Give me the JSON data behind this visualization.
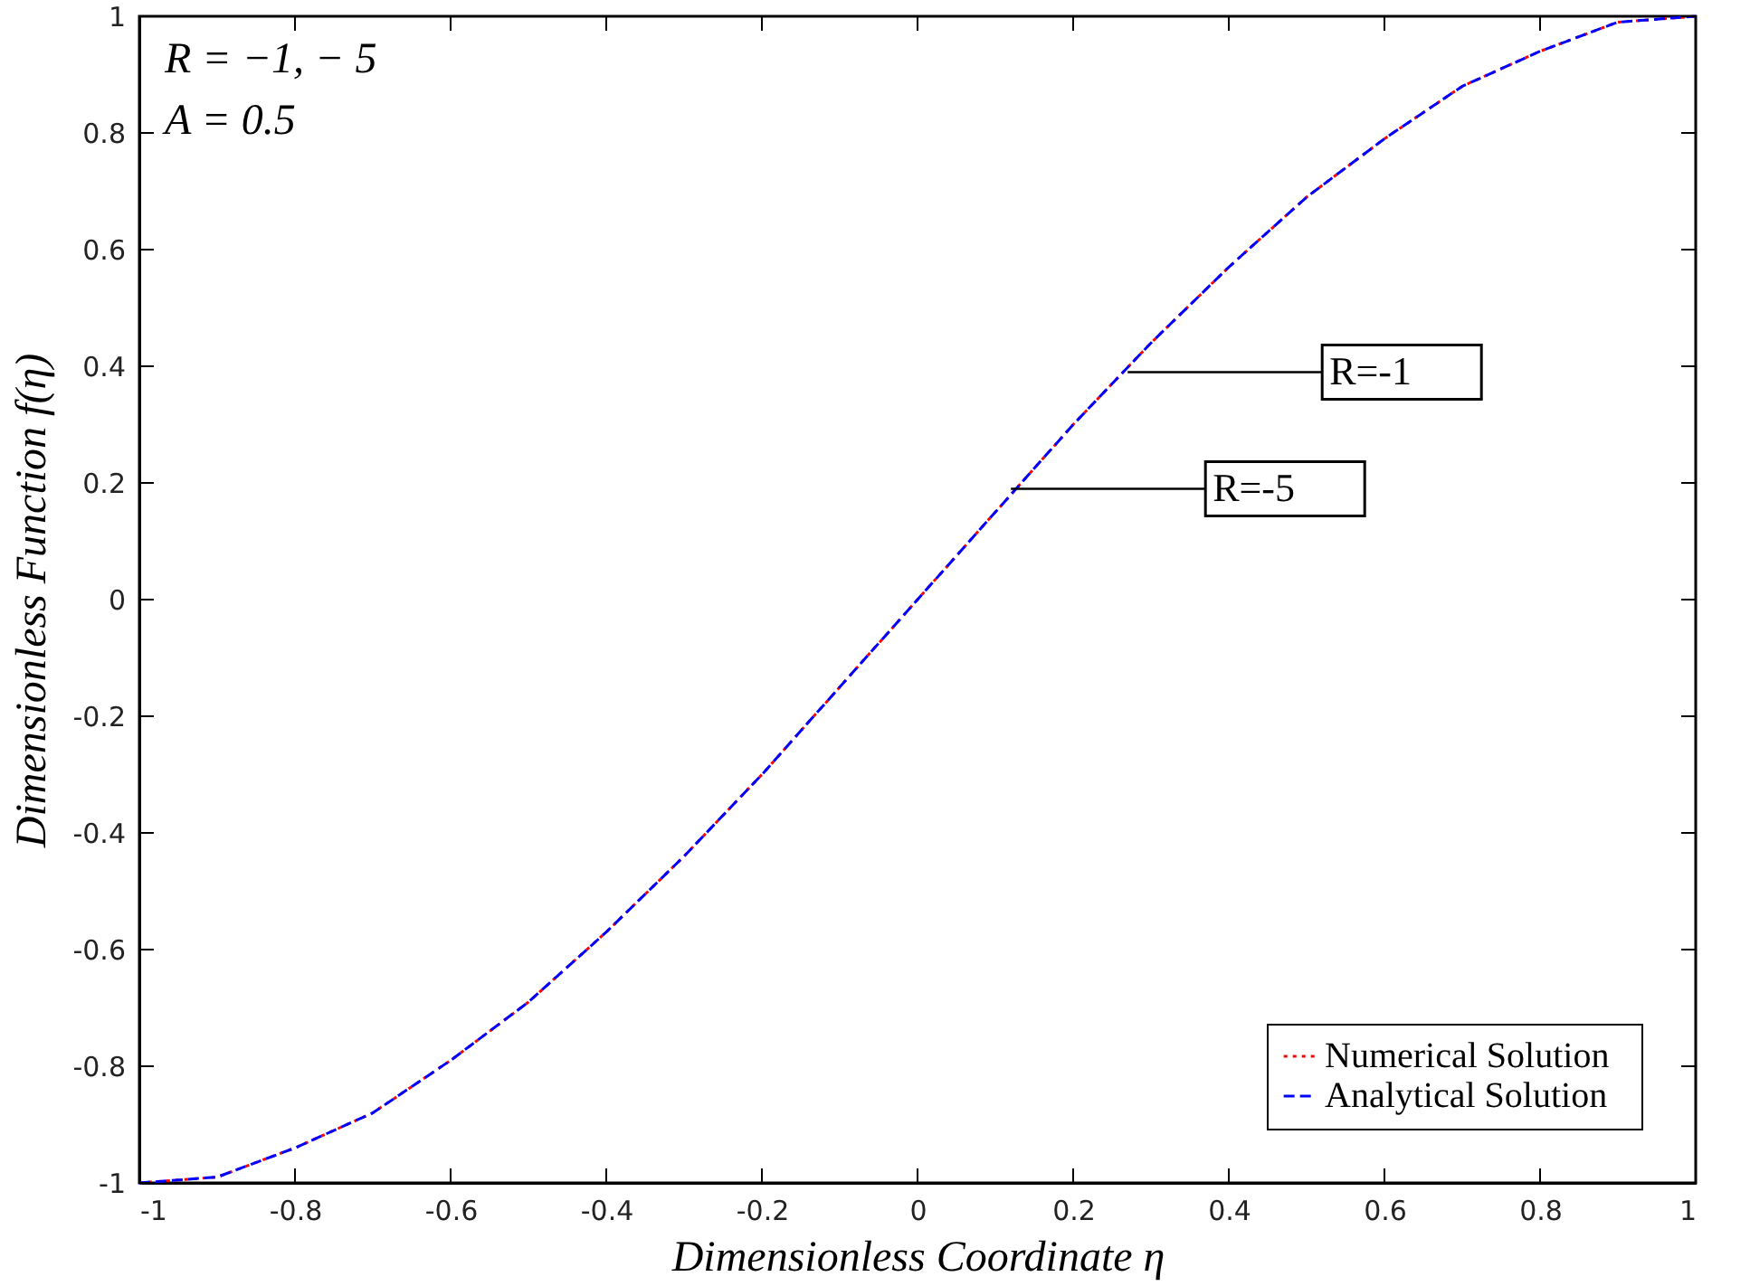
{
  "chart_data": {
    "type": "line",
    "xlabel": "Dimensionless  Coordinate  η",
    "ylabel": "Dimensionless  Function  f(η)",
    "x": [
      -1,
      -0.9,
      -0.8,
      -0.7,
      -0.6,
      -0.5,
      -0.4,
      -0.3,
      -0.2,
      -0.1,
      0,
      0.1,
      0.2,
      0.3,
      0.4,
      0.5,
      0.6,
      0.7,
      0.8,
      0.9,
      1
    ],
    "series": [
      {
        "name": "Numerical  Solution",
        "color": "#ff0000",
        "line_style": "dotted",
        "values": [
          -1,
          -0.99,
          -0.94,
          -0.88,
          -0.79,
          -0.69,
          -0.57,
          -0.44,
          -0.3,
          -0.15,
          0,
          0.15,
          0.3,
          0.44,
          0.57,
          0.69,
          0.79,
          0.88,
          0.94,
          0.99,
          1
        ]
      },
      {
        "name": "Analytical   Solution",
        "color": "#0000ff",
        "line_style": "dashed",
        "values": [
          -1,
          -0.99,
          -0.94,
          -0.88,
          -0.79,
          -0.69,
          -0.57,
          -0.44,
          -0.3,
          -0.15,
          0,
          0.15,
          0.3,
          0.44,
          0.57,
          0.69,
          0.79,
          0.88,
          0.94,
          0.99,
          1
        ]
      }
    ],
    "xlim": [
      -1,
      1
    ],
    "ylim": [
      -1,
      1
    ],
    "xticks": [
      -1,
      -0.8,
      -0.6,
      -0.4,
      -0.2,
      0,
      0.2,
      0.4,
      0.6,
      0.8,
      1
    ],
    "yticks": [
      -1,
      -0.8,
      -0.6,
      -0.4,
      -0.2,
      0,
      0.2,
      0.4,
      0.6,
      0.8,
      1
    ],
    "annotations": [
      "R = −1, − 5",
      "A = 0.5",
      {
        "text": "R=-1",
        "x": 0.27,
        "y": 0.39
      },
      {
        "text": "R=-5",
        "x": 0.12,
        "y": 0.19
      }
    ],
    "grid": false,
    "legend": "bottom right",
    "marker": "none"
  }
}
